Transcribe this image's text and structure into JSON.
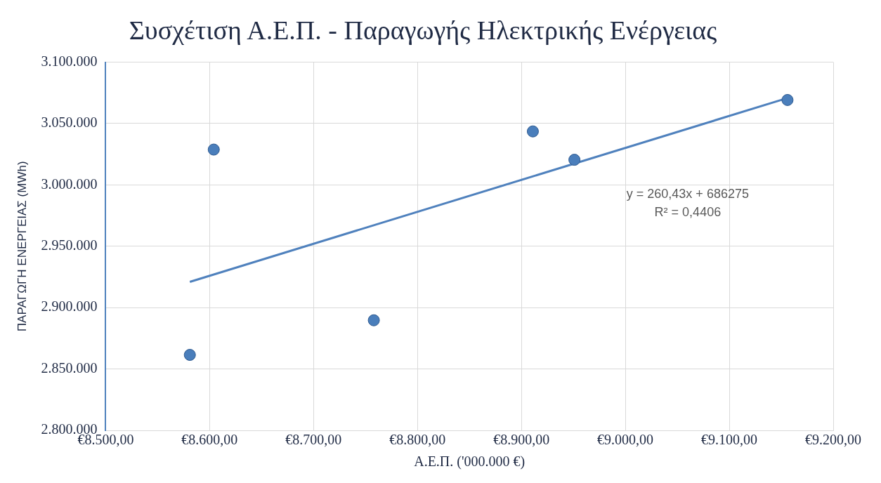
{
  "chart_data": {
    "type": "scatter",
    "title": "Συσχέτιση Α.Ε.Π. - Παραγωγής Ηλεκτρικής Ενέργειας",
    "xlabel": "Α.Ε.Π. ('000.000 €)",
    "ylabel": "ΠΑΡΑΓΩΓΗ ΕΝΕΡΓΕΙΑΣ (MWh)",
    "series": [
      {
        "type": "scatter",
        "color": "#4a7ebb",
        "marker": "circle",
        "x": [
          8581,
          8604,
          8758,
          8911,
          8951,
          9156
        ],
        "values": [
          2861500,
          3028800,
          2889700,
          3043600,
          3020500,
          3069200
        ]
      },
      {
        "type": "line",
        "color": "#4f81bd",
        "marker": "none",
        "line_style": "solid",
        "x": [
          8581,
          9156
        ],
        "values": [
          2921000,
          3070800
        ]
      }
    ],
    "xlim": [
      8500,
      9200
    ],
    "xticks": [
      {
        "value": 8500,
        "label": "€8.500,00"
      },
      {
        "value": 8600,
        "label": "€8.600,00"
      },
      {
        "value": 8700,
        "label": "€8.700,00"
      },
      {
        "value": 8800,
        "label": "€8.800,00"
      },
      {
        "value": 8900,
        "label": "€8.900,00"
      },
      {
        "value": 9000,
        "label": "€9.000,00"
      },
      {
        "value": 9100,
        "label": "€9.100,00"
      },
      {
        "value": 9200,
        "label": "€9.200,00"
      }
    ],
    "ylim": [
      2800000,
      3100000
    ],
    "yticks": [
      {
        "value": 2800000,
        "label": "2.800.000"
      },
      {
        "value": 2850000,
        "label": "2.850.000"
      },
      {
        "value": 2900000,
        "label": "2.900.000"
      },
      {
        "value": 2950000,
        "label": "2.950.000"
      },
      {
        "value": 3000000,
        "label": "3.000.000"
      },
      {
        "value": 3050000,
        "label": "3.050.000"
      },
      {
        "value": 3100000,
        "label": "3.100.000"
      }
    ],
    "annotations": [
      "y = 260,43x + 686275",
      "R² = 0,4406"
    ],
    "grid": true,
    "legend": false
  }
}
